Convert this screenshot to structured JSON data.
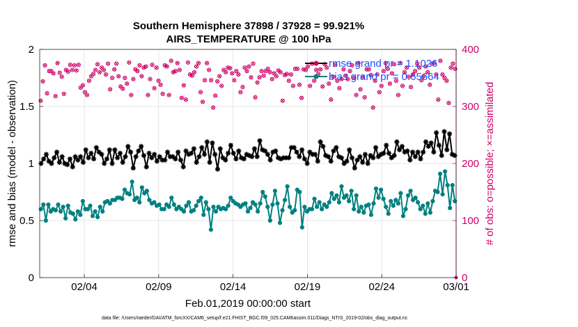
{
  "chart_data": {
    "type": "line",
    "title_line1": "Southern Hemisphere 37898 / 37928 = 99.921%",
    "title_line2": "AIRS_TEMPERATURE @ 100 hPa",
    "xlabel": "Feb.01,2019 00:00:00 start",
    "ylabel_left": "rmse and bias (model - observation)",
    "ylabel_right": "# of obs: o=possible; ×=assimilated",
    "footnote": "data file: /Users/raeder/DAI/ATM_forcXX/CAM6_setup/f.e21.FHIST_BGC.f09_025.CAM6assim.011/Diags_NTrS_2019-02/obs_diag_output.nc",
    "xlim": [
      0,
      28
    ],
    "xtick_positions": [
      3,
      8,
      13,
      18,
      23,
      28
    ],
    "xtick_labels": [
      "02/04",
      "02/09",
      "02/14",
      "02/19",
      "02/24",
      "03/01"
    ],
    "ylim_left": [
      0,
      2
    ],
    "yticks_left": [
      "0",
      "0.5",
      "1",
      "1.5",
      "2"
    ],
    "ylim_right": [
      0,
      400
    ],
    "yticks_right": [
      "0",
      "100",
      "200",
      "300",
      "400"
    ],
    "grid": true,
    "legend_position": "top-right",
    "series": [
      {
        "name": "rmse grand pr = 1.1026",
        "axis": "left",
        "color": "#000000",
        "marker": "star",
        "values": [
          1.0,
          1.04,
          1.08,
          1.02,
          1.0,
          1.05,
          1.1,
          1.01,
          1.06,
          1.0,
          0.99,
          1.04,
          0.97,
          1.06,
          1.03,
          1.06,
          1.01,
          1.12,
          1.05,
          1.09,
          1.04,
          1.14,
          1.1,
          1.08,
          1.0,
          1.04,
          1.12,
          1.0,
          1.12,
          1.05,
          1.09,
          1.01,
          1.06,
          1.15,
          1.1,
          0.96,
          1.06,
          1.11,
          1.15,
          1.07,
          0.97,
          1.09,
          1.05,
          1.08,
          1.02,
          1.06,
          1.03,
          1.03,
          1.1,
          1.06,
          1.06,
          1.04,
          1.1,
          1.03,
          0.97,
          1.11,
          1.08,
          1.09,
          1.13,
          1.01,
          1.06,
          1.14,
          1.08,
          1.19,
          1.01,
          1.18,
          1.08,
          0.95,
          1.13,
          1.05,
          1.03,
          1.09,
          1.16,
          1.09,
          1.04,
          1.11,
          1.05,
          1.04,
          1.08,
          1.07,
          1.06,
          1.13,
          1.06,
          1.2,
          1.12,
          1.11,
          1.08,
          1.03,
          1.1,
          1.11,
          1.05,
          1.04,
          1.05,
          1.05,
          1.05,
          1.14,
          1.14,
          1.1,
          1.06,
          1.12,
          1.04,
          1.0,
          1.1,
          1.08,
          1.08,
          1.02,
          1.19,
          1.15,
          1.07,
          1.06,
          1.02,
          1.11,
          1.14,
          1.06,
          1.05,
          1.0,
          1.02,
          1.12,
          1.05,
          0.96,
          1.03,
          1.06,
          1.01,
          1.08,
          1.0,
          1.07,
          1.05,
          1.14,
          1.06,
          1.08,
          1.09,
          1.16,
          1.09,
          1.05,
          1.07,
          1.19,
          1.12,
          1.15,
          1.1,
          1.11,
          1.03,
          1.1,
          1.06,
          1.1,
          1.04,
          1.1,
          1.19,
          1.15,
          1.18,
          1.1,
          1.27,
          1.16,
          1.07,
          1.28,
          1.12,
          1.26,
          1.08,
          1.07
        ]
      },
      {
        "name": "bias grand pr = 0.65664",
        "axis": "left",
        "color": "#008080",
        "marker": "circle",
        "values": [
          0.6,
          0.64,
          0.5,
          0.64,
          0.58,
          0.6,
          0.59,
          0.64,
          0.58,
          0.62,
          0.52,
          0.63,
          0.57,
          0.56,
          0.51,
          0.58,
          0.55,
          0.67,
          0.6,
          0.6,
          0.63,
          0.54,
          0.58,
          0.53,
          0.62,
          0.58,
          0.66,
          0.67,
          0.65,
          0.68,
          0.68,
          0.7,
          0.7,
          0.69,
          0.77,
          0.74,
          0.73,
          0.84,
          0.68,
          0.7,
          0.66,
          0.79,
          0.74,
          0.76,
          0.68,
          0.65,
          0.66,
          0.63,
          0.64,
          0.6,
          0.6,
          0.64,
          0.62,
          0.7,
          0.64,
          0.6,
          0.62,
          0.6,
          0.58,
          0.63,
          0.66,
          0.58,
          0.59,
          0.63,
          0.67,
          0.7,
          0.55,
          0.66,
          0.6,
          0.42,
          0.62,
          0.58,
          0.62,
          0.6,
          0.61,
          0.6,
          0.63,
          0.7,
          0.67,
          0.65,
          0.64,
          0.62,
          0.64,
          0.65,
          0.58,
          0.61,
          0.66,
          0.64,
          0.58,
          0.65,
          0.75,
          0.71,
          0.62,
          0.5,
          0.64,
          0.76,
          0.65,
          0.48,
          0.59,
          0.68,
          0.8,
          0.62,
          0.57,
          0.59,
          0.77,
          0.75,
          0.44,
          0.62,
          0.58,
          0.6,
          0.6,
          0.69,
          0.62,
          0.66,
          0.6,
          0.64,
          0.62,
          0.66,
          0.74,
          0.69,
          0.72,
          0.66,
          0.8,
          0.7,
          0.72,
          0.67,
          0.76,
          0.6,
          0.72,
          0.58,
          0.62,
          0.57,
          0.63,
          0.64,
          0.55,
          0.65,
          0.78,
          0.7,
          0.77,
          0.69,
          0.62,
          0.56,
          0.67,
          0.63,
          0.68,
          0.65,
          0.74,
          0.54,
          0.6,
          0.72,
          0.76,
          0.68,
          0.7,
          0.66,
          0.6,
          0.63,
          0.56,
          0.65,
          0.57,
          0.67,
          0.76,
          0.75,
          0.91,
          0.73,
          0.93,
          0.81,
          0.61,
          0.81,
          0.67
        ]
      },
      {
        "name": "obs possible",
        "axis": "right",
        "color": "#cc0066",
        "marker": "o",
        "values": [
          310,
          344,
          372,
          323,
          362,
          362,
          358,
          318,
          376,
          359,
          352,
          322,
          364,
          361,
          373,
          364,
          372,
          363,
          373,
          333,
          337,
          325,
          320,
          345,
          353,
          357,
          364,
          374,
          360,
          368,
          364,
          356,
          375,
          330,
          350,
          365,
          375,
          353,
          335,
          331,
          350,
          340,
          377,
          320,
          348,
          365,
          362,
          372,
          353,
          368,
          370,
          320,
          348,
          373,
          332,
          368,
          345,
          338,
          322,
          372,
          370,
          320,
          380,
          360,
          362,
          376,
          364,
          315,
          337,
          312,
          377,
          356,
          354,
          360,
          370,
          376,
          325,
          308,
          346,
          376,
          364,
          346,
          298,
          319,
          344,
          353,
          336,
          364,
          360,
          368,
          367,
          358,
          346,
          362,
          356,
          325,
          334,
          368,
          362,
          370,
          351,
          375,
          316,
          342,
          351,
          362,
          354,
          362,
          366,
          360,
          348,
          358,
          353,
          363,
          360,
          310,
          355,
          357,
          345,
          356,
          336,
          366,
          366,
          338,
          315,
          365,
          364,
          370,
          336,
          375,
          345,
          364,
          357,
          365,
          335,
          374,
          368,
          340,
          312,
          352,
          373,
          345,
          332,
          348,
          365,
          354,
          348,
          362,
          372,
          350,
          320,
          376,
          330,
          352,
          316,
          365,
          365,
          355,
          298,
          345,
          356,
          325,
          336,
          362,
          376,
          366,
          340,
          358,
          374,
          345,
          320,
          376,
          336,
          360,
          368,
          352,
          334,
          356,
          362,
          375,
          368,
          346,
          353,
          370,
          360,
          338,
          375,
          376,
          356,
          312,
          380,
          356,
          350,
          345,
          306,
          368,
          375,
          366
        ]
      },
      {
        "name": "obs assimilated",
        "axis": "right",
        "color": "#cc0066",
        "marker": "x",
        "values": [
          310,
          344,
          372,
          323,
          362,
          362,
          358,
          318,
          376,
          359,
          352,
          322,
          364,
          361,
          373,
          364,
          372,
          363,
          373,
          333,
          337,
          325,
          320,
          345,
          353,
          357,
          364,
          374,
          360,
          368,
          364,
          356,
          375,
          330,
          350,
          365,
          375,
          353,
          335,
          331,
          350,
          340,
          377,
          320,
          348,
          365,
          362,
          372,
          353,
          368,
          370,
          320,
          348,
          373,
          332,
          368,
          345,
          338,
          322,
          372,
          370,
          320,
          380,
          360,
          362,
          376,
          364,
          315,
          337,
          312,
          377,
          356,
          354,
          360,
          370,
          376,
          325,
          308,
          346,
          376,
          364,
          346,
          298,
          319,
          344,
          353,
          336,
          364,
          360,
          368,
          367,
          358,
          346,
          362,
          356,
          325,
          334,
          368,
          362,
          370,
          351,
          375,
          316,
          342,
          351,
          362,
          354,
          362,
          366,
          360,
          348,
          358,
          353,
          363,
          360,
          310,
          355,
          357,
          345,
          356,
          336,
          366,
          366,
          338,
          315,
          365,
          364,
          370,
          336,
          375,
          345,
          364,
          357,
          365,
          335,
          374,
          368,
          340,
          312,
          352,
          373,
          345,
          332,
          348,
          365,
          354,
          348,
          362,
          372,
          350,
          320,
          376,
          330,
          352,
          316,
          365,
          365,
          355,
          298,
          345,
          356,
          325,
          336,
          362,
          376,
          366,
          340,
          358,
          374,
          345,
          320,
          376,
          336,
          360,
          368,
          352,
          334,
          356,
          362,
          375,
          368,
          346,
          353,
          370,
          360,
          338,
          375,
          376,
          356,
          312,
          380,
          356,
          350,
          345,
          306,
          368,
          375,
          366
        ]
      }
    ]
  }
}
